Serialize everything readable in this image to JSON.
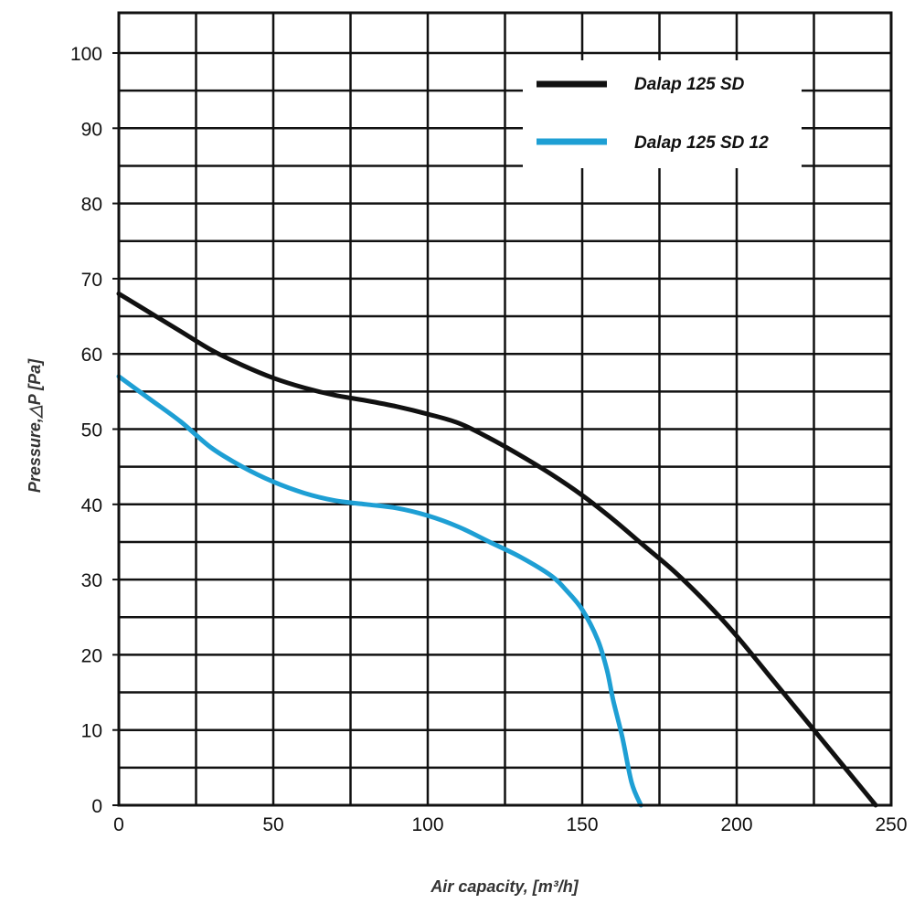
{
  "chart_data": {
    "type": "line",
    "title": "",
    "xlabel": "Air capacity, [m³/h]",
    "ylabel": "Pressure,△P [Pa]",
    "xlim": [
      0,
      250
    ],
    "ylim": [
      0,
      105
    ],
    "x_ticks": [
      "0",
      "50",
      "100",
      "150",
      "200",
      "250"
    ],
    "y_ticks": [
      "0",
      "10",
      "20",
      "30",
      "40",
      "50",
      "60",
      "70",
      "80",
      "90",
      "100"
    ],
    "grid": true,
    "legend_position": "top-right",
    "series": [
      {
        "name": "Dalap 125 SD",
        "color": "#111111",
        "x": [
          0,
          10,
          20,
          30,
          40,
          50,
          60,
          70,
          80,
          90,
          100,
          110,
          120,
          130,
          140,
          150,
          160,
          170,
          180,
          190,
          200,
          210,
          220,
          230,
          240,
          245
        ],
        "y": [
          68,
          65.5,
          63,
          60.5,
          58.5,
          56.8,
          55.5,
          54.5,
          53.8,
          53,
          52,
          50.8,
          48.8,
          46.5,
          44,
          41.2,
          38,
          34.5,
          31,
          27,
          22.5,
          17.5,
          12.5,
          7.5,
          2.5,
          0
        ]
      },
      {
        "name": "Dalap 125 SD 12",
        "color": "#1e9fd4",
        "x": [
          0,
          10,
          20,
          30,
          40,
          50,
          60,
          70,
          80,
          90,
          100,
          110,
          120,
          130,
          140,
          145,
          150,
          155,
          158,
          160,
          163,
          166,
          169
        ],
        "y": [
          57,
          54,
          51,
          47.5,
          45,
          43,
          41.5,
          40.5,
          40,
          39.5,
          38.5,
          37,
          35,
          33,
          30.5,
          28.5,
          26,
          22,
          18,
          14,
          9,
          3,
          0
        ]
      }
    ]
  }
}
